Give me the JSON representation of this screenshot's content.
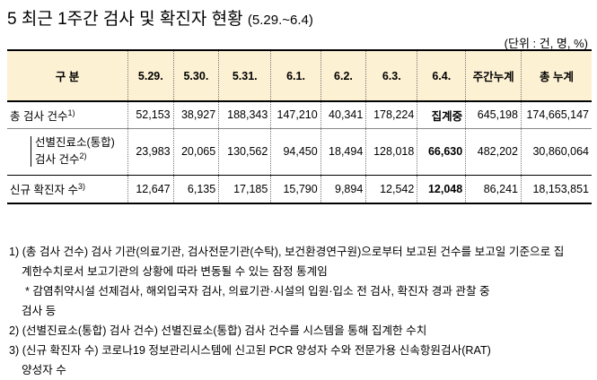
{
  "title": {
    "number": "5",
    "text": "최근 1주간 검사 및 확진자 현황",
    "range": "(5.29.~6.4)"
  },
  "unit": "(단위 : 건, 명, %)",
  "table": {
    "headers": [
      "구 분",
      "5.29.",
      "5.30.",
      "5.31.",
      "6.1.",
      "6.2.",
      "6.3.",
      "6.4.",
      "주간누계",
      "총 누계"
    ],
    "rows": [
      {
        "label": "총 검사 건수",
        "note": "1)",
        "cells": [
          "52,153",
          "38,927",
          "188,343",
          "147,210",
          "40,341",
          "178,224",
          "집계중",
          "645,198",
          "174,665,147"
        ]
      },
      {
        "label_line1": "선별진료소(통합)",
        "label_line2": "검사 건수",
        "note": "2)",
        "cells": [
          "23,983",
          "20,065",
          "130,562",
          "94,450",
          "18,494",
          "128,018",
          "66,630",
          "482,202",
          "30,860,064"
        ]
      },
      {
        "label": "신규 확진자 수",
        "note": "3)",
        "cells": [
          "12,647",
          "6,135",
          "17,185",
          "15,790",
          "9,894",
          "12,542",
          "12,048",
          "86,241",
          "18,153,851"
        ]
      }
    ]
  },
  "notes": [
    "1) (총 검사 건수) 검사 기관(의료기관, 검사전문기관(수탁), 보건환경연구원)으로부터 보고된 건수를 보고일 기준으로 집",
    "계한수치로서 보고기관의 상황에 따라 변동될 수 있는 잠정 통계임",
    "* 감염취약시설 선제검사, 해외입국자 검사, 의료기관·시설의 입원·입소 전 검사, 확진자 경과 관찰 중",
    "검사 등",
    "2) (선별진료소(통합) 검사 건수) 선별진료소(통합) 검사 건수를 시스템을 통해 집계한 수치",
    "3) (신규 확진자 수) 코로나19 정보관리시스템에 신고된 PCR 양성자 수와 전문가용 신속항원검사(RAT)",
    "양성자 수"
  ]
}
